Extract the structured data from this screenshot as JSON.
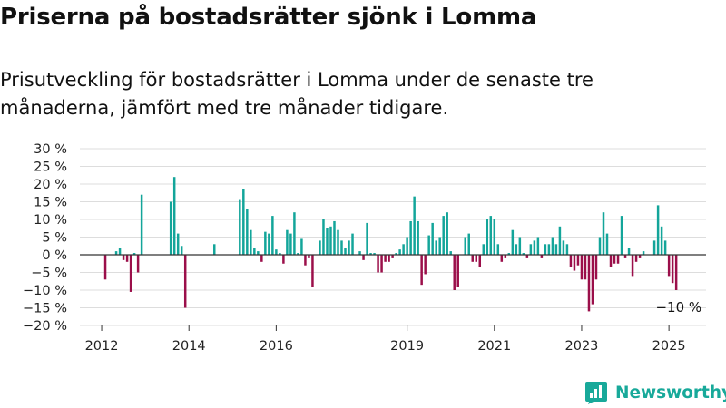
{
  "title": "Priserna på bostadsrätter sjönk i Lomma",
  "subtitle": "Prisutveckling för bostadsrätter i Lomma under de senaste tre månaderna, jämfört med tre månader tidigare.",
  "brand": {
    "name": "Newsworthy",
    "icon": "newsworthy-logo-icon"
  },
  "colors": {
    "positive": "#13a59a",
    "negative": "#9b0f4a",
    "grid": "#dddddd",
    "axis": "#333333"
  },
  "chart_data": {
    "type": "bar",
    "title": "",
    "xlabel": "",
    "ylabel": "",
    "ylim": [
      -20,
      30
    ],
    "yticks": [
      30,
      25,
      20,
      15,
      10,
      5,
      0,
      -5,
      -10,
      -15,
      -20
    ],
    "ytick_labels": [
      "30 %",
      "25 %",
      "20 %",
      "15 %",
      "10 %",
      "5 %",
      "0 %",
      "−5 %",
      "−10 %",
      "−15 %",
      "−20 %"
    ],
    "xticks": [
      2012,
      2014,
      2016,
      2019,
      2021,
      2023,
      2025
    ],
    "xtick_labels": [
      "2012",
      "2014",
      "2016",
      "2019",
      "2021",
      "2023",
      "2025"
    ],
    "grid": true,
    "annotation": "−10 %",
    "series": [
      {
        "points": [
          {
            "x": "2012-01",
            "y": 0
          },
          {
            "x": "2012-02",
            "y": -7
          },
          {
            "x": "2012-03",
            "y": 0
          },
          {
            "x": "2012-04",
            "y": 0
          },
          {
            "x": "2012-05",
            "y": 1
          },
          {
            "x": "2012-06",
            "y": 2
          },
          {
            "x": "2012-07",
            "y": -1.5
          },
          {
            "x": "2012-08",
            "y": -2
          },
          {
            "x": "2012-09",
            "y": -10.5
          },
          {
            "x": "2012-10",
            "y": 0.5
          },
          {
            "x": "2012-11",
            "y": -5
          },
          {
            "x": "2012-12",
            "y": 17
          },
          {
            "x": "2013-01",
            "y": 0
          },
          {
            "x": "2013-02",
            "y": 0
          },
          {
            "x": "2013-03",
            "y": 0
          },
          {
            "x": "2013-04",
            "y": 0
          },
          {
            "x": "2013-05",
            "y": 0
          },
          {
            "x": "2013-06",
            "y": 0
          },
          {
            "x": "2013-07",
            "y": 0
          },
          {
            "x": "2013-08",
            "y": 15
          },
          {
            "x": "2013-09",
            "y": 22
          },
          {
            "x": "2013-10",
            "y": 6
          },
          {
            "x": "2013-11",
            "y": 2.5
          },
          {
            "x": "2013-12",
            "y": -15
          },
          {
            "x": "2014-01",
            "y": 0
          },
          {
            "x": "2014-02",
            "y": 0
          },
          {
            "x": "2014-03",
            "y": 0
          },
          {
            "x": "2014-04",
            "y": 0
          },
          {
            "x": "2014-05",
            "y": 0
          },
          {
            "x": "2014-06",
            "y": 0
          },
          {
            "x": "2014-07",
            "y": 0
          },
          {
            "x": "2014-08",
            "y": 3
          },
          {
            "x": "2014-09",
            "y": 0
          },
          {
            "x": "2014-10",
            "y": 0
          },
          {
            "x": "2014-11",
            "y": 0
          },
          {
            "x": "2014-12",
            "y": 0
          },
          {
            "x": "2015-01",
            "y": 0
          },
          {
            "x": "2015-02",
            "y": 0
          },
          {
            "x": "2015-03",
            "y": 15.5
          },
          {
            "x": "2015-04",
            "y": 18.5
          },
          {
            "x": "2015-05",
            "y": 13
          },
          {
            "x": "2015-06",
            "y": 7
          },
          {
            "x": "2015-07",
            "y": 2
          },
          {
            "x": "2015-08",
            "y": 1
          },
          {
            "x": "2015-09",
            "y": -2
          },
          {
            "x": "2015-10",
            "y": 6.5
          },
          {
            "x": "2015-11",
            "y": 6
          },
          {
            "x": "2015-12",
            "y": 11
          },
          {
            "x": "2016-01",
            "y": 1.5
          },
          {
            "x": "2016-02",
            "y": 0.5
          },
          {
            "x": "2016-03",
            "y": -2.5
          },
          {
            "x": "2016-04",
            "y": 7
          },
          {
            "x": "2016-05",
            "y": 6
          },
          {
            "x": "2016-06",
            "y": 12
          },
          {
            "x": "2016-07",
            "y": 0.5
          },
          {
            "x": "2016-08",
            "y": 4.5
          },
          {
            "x": "2016-09",
            "y": -3
          },
          {
            "x": "2016-10",
            "y": -1
          },
          {
            "x": "2016-11",
            "y": -9
          },
          {
            "x": "2016-12",
            "y": 0
          },
          {
            "x": "2017-01",
            "y": 4
          },
          {
            "x": "2017-02",
            "y": 10
          },
          {
            "x": "2017-03",
            "y": 7.5
          },
          {
            "x": "2017-04",
            "y": 8
          },
          {
            "x": "2017-05",
            "y": 9.5
          },
          {
            "x": "2017-06",
            "y": 7
          },
          {
            "x": "2017-07",
            "y": 4
          },
          {
            "x": "2017-08",
            "y": 2
          },
          {
            "x": "2017-09",
            "y": 4
          },
          {
            "x": "2017-10",
            "y": 6
          },
          {
            "x": "2017-11",
            "y": 0
          },
          {
            "x": "2017-12",
            "y": 1
          },
          {
            "x": "2018-01",
            "y": -1.5
          },
          {
            "x": "2018-02",
            "y": 9
          },
          {
            "x": "2018-03",
            "y": 0.5
          },
          {
            "x": "2018-04",
            "y": 0.5
          },
          {
            "x": "2018-05",
            "y": -5
          },
          {
            "x": "2018-06",
            "y": -5
          },
          {
            "x": "2018-07",
            "y": -2
          },
          {
            "x": "2018-08",
            "y": -2
          },
          {
            "x": "2018-09",
            "y": -1
          },
          {
            "x": "2018-10",
            "y": 0.5
          },
          {
            "x": "2018-11",
            "y": 1.5
          },
          {
            "x": "2018-12",
            "y": 3
          },
          {
            "x": "2019-01",
            "y": 5
          },
          {
            "x": "2019-02",
            "y": 9.5
          },
          {
            "x": "2019-03",
            "y": 16.5
          },
          {
            "x": "2019-04",
            "y": 9.5
          },
          {
            "x": "2019-05",
            "y": -8.5
          },
          {
            "x": "2019-06",
            "y": -5.5
          },
          {
            "x": "2019-07",
            "y": 5.5
          },
          {
            "x": "2019-08",
            "y": 9
          },
          {
            "x": "2019-09",
            "y": 4
          },
          {
            "x": "2019-10",
            "y": 5
          },
          {
            "x": "2019-11",
            "y": 11
          },
          {
            "x": "2019-12",
            "y": 12
          },
          {
            "x": "2020-01",
            "y": 1
          },
          {
            "x": "2020-02",
            "y": -10
          },
          {
            "x": "2020-03",
            "y": -9
          },
          {
            "x": "2020-04",
            "y": 0
          },
          {
            "x": "2020-05",
            "y": 5
          },
          {
            "x": "2020-06",
            "y": 6
          },
          {
            "x": "2020-07",
            "y": -2
          },
          {
            "x": "2020-08",
            "y": -2
          },
          {
            "x": "2020-09",
            "y": -3.5
          },
          {
            "x": "2020-10",
            "y": 3
          },
          {
            "x": "2020-11",
            "y": 10
          },
          {
            "x": "2020-12",
            "y": 11
          },
          {
            "x": "2021-01",
            "y": 10
          },
          {
            "x": "2021-02",
            "y": 3
          },
          {
            "x": "2021-03",
            "y": -2
          },
          {
            "x": "2021-04",
            "y": -1
          },
          {
            "x": "2021-05",
            "y": 0.5
          },
          {
            "x": "2021-06",
            "y": 7
          },
          {
            "x": "2021-07",
            "y": 3
          },
          {
            "x": "2021-08",
            "y": 5
          },
          {
            "x": "2021-09",
            "y": 0.5
          },
          {
            "x": "2021-10",
            "y": -1
          },
          {
            "x": "2021-11",
            "y": 3
          },
          {
            "x": "2021-12",
            "y": 4
          },
          {
            "x": "2022-01",
            "y": 5
          },
          {
            "x": "2022-02",
            "y": -1
          },
          {
            "x": "2022-03",
            "y": 3
          },
          {
            "x": "2022-04",
            "y": 3
          },
          {
            "x": "2022-05",
            "y": 5
          },
          {
            "x": "2022-06",
            "y": 3
          },
          {
            "x": "2022-07",
            "y": 8
          },
          {
            "x": "2022-08",
            "y": 4
          },
          {
            "x": "2022-09",
            "y": 3
          },
          {
            "x": "2022-10",
            "y": -3.5
          },
          {
            "x": "2022-11",
            "y": -4.5
          },
          {
            "x": "2022-12",
            "y": -3
          },
          {
            "x": "2023-01",
            "y": -7
          },
          {
            "x": "2023-02",
            "y": -7
          },
          {
            "x": "2023-03",
            "y": -16
          },
          {
            "x": "2023-04",
            "y": -14
          },
          {
            "x": "2023-05",
            "y": -7
          },
          {
            "x": "2023-06",
            "y": 5
          },
          {
            "x": "2023-07",
            "y": 12
          },
          {
            "x": "2023-08",
            "y": 6
          },
          {
            "x": "2023-09",
            "y": -3.5
          },
          {
            "x": "2023-10",
            "y": -2.5
          },
          {
            "x": "2023-11",
            "y": -2.5
          },
          {
            "x": "2023-12",
            "y": 11
          },
          {
            "x": "2024-01",
            "y": -1
          },
          {
            "x": "2024-02",
            "y": 2
          },
          {
            "x": "2024-03",
            "y": -6
          },
          {
            "x": "2024-04",
            "y": -2
          },
          {
            "x": "2024-05",
            "y": -1
          },
          {
            "x": "2024-06",
            "y": 1
          },
          {
            "x": "2024-07",
            "y": 0
          },
          {
            "x": "2024-08",
            "y": 0
          },
          {
            "x": "2024-09",
            "y": 4
          },
          {
            "x": "2024-10",
            "y": 14
          },
          {
            "x": "2024-11",
            "y": 8
          },
          {
            "x": "2024-12",
            "y": 4
          },
          {
            "x": "2025-01",
            "y": -6
          },
          {
            "x": "2025-02",
            "y": -8
          },
          {
            "x": "2025-03",
            "y": -10
          }
        ]
      }
    ]
  }
}
